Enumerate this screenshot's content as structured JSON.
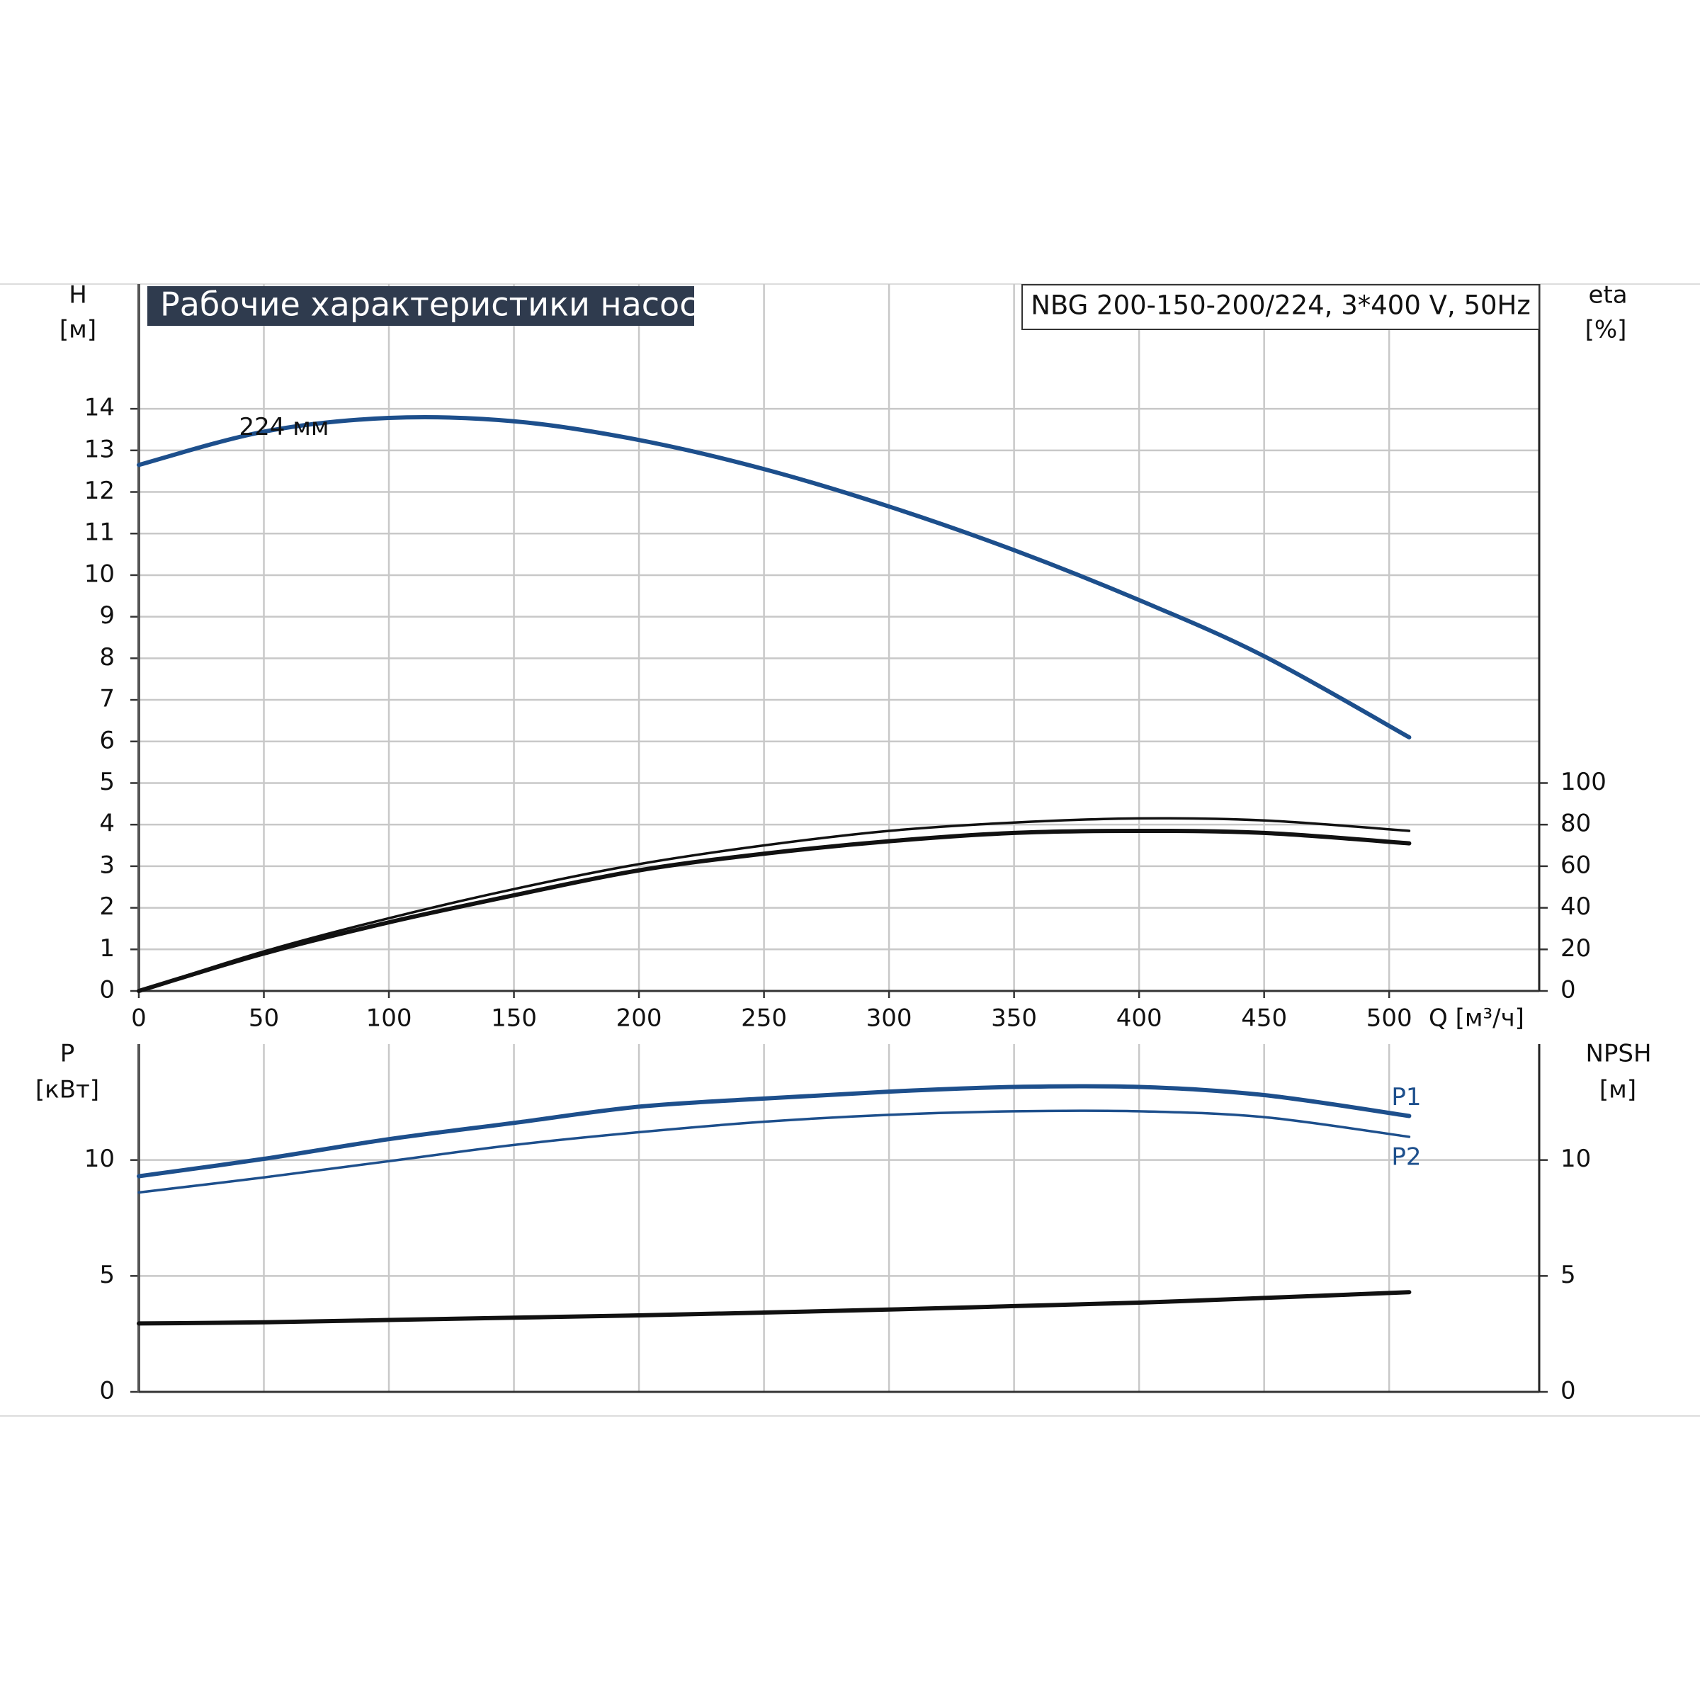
{
  "chart_data": [
    {
      "type": "line",
      "title": "Рабочие характеристики насоса",
      "subtitle": "NBG 200-150-200/224, 3*400 V, 50Hz",
      "ylabel": "H",
      "yunit": "[м]",
      "y2label": "eta",
      "y2unit": "[%]",
      "xlabel": "Q [м³/ч]",
      "x": [
        0,
        50,
        100,
        150,
        200,
        250,
        300,
        350,
        400,
        450,
        508
      ],
      "xlim": [
        0,
        560
      ],
      "xticks": [
        0,
        50,
        100,
        150,
        200,
        250,
        300,
        350,
        400,
        450,
        500
      ],
      "ylim": [
        0,
        17
      ],
      "yticks": [
        0,
        1,
        2,
        3,
        4,
        5,
        6,
        7,
        8,
        9,
        10,
        11,
        12,
        13,
        14
      ],
      "y2lim": [
        0,
        340
      ],
      "y2ticks": [
        0,
        20,
        40,
        60,
        80,
        100
      ],
      "grid": true,
      "series": [
        {
          "name": "224 мм",
          "color": "#1d4f8c",
          "values": [
            12.65,
            13.45,
            13.78,
            13.7,
            13.25,
            12.55,
            11.65,
            10.6,
            9.4,
            8.05,
            6.1
          ]
        },
        {
          "color": "#111111",
          "axis": "y2",
          "values": [
            0,
            19,
            35,
            49,
            61,
            70,
            77,
            81,
            83,
            82,
            77
          ]
        },
        {
          "color": "#111111",
          "axis": "y2",
          "values": [
            0,
            18,
            33,
            46,
            58,
            66,
            72,
            76,
            77,
            76,
            71
          ]
        }
      ]
    },
    {
      "type": "line",
      "ylabel": "P",
      "yunit": "[кВт]",
      "y2label": "NPSH",
      "y2unit": "[м]",
      "x": [
        0,
        50,
        100,
        150,
        200,
        250,
        300,
        350,
        400,
        450,
        508
      ],
      "xlim": [
        0,
        560
      ],
      "ylim": [
        0,
        15
      ],
      "yticks": [
        0,
        5,
        10
      ],
      "y2lim": [
        0,
        15
      ],
      "y2ticks": [
        0,
        5,
        10
      ],
      "grid": true,
      "series": [
        {
          "name": "P1",
          "color": "#1d4f8c",
          "values": [
            9.3,
            10.05,
            10.9,
            11.6,
            12.3,
            12.65,
            12.95,
            13.15,
            13.15,
            12.8,
            11.9
          ]
        },
        {
          "name": "P2",
          "color": "#1d4f8c",
          "values": [
            8.6,
            9.25,
            9.95,
            10.65,
            11.2,
            11.65,
            11.95,
            12.1,
            12.1,
            11.85,
            11.0
          ]
        },
        {
          "color": "#111111",
          "axis": "y2",
          "values": [
            2.95,
            3.0,
            3.1,
            3.2,
            3.3,
            3.42,
            3.55,
            3.7,
            3.85,
            4.05,
            4.3
          ]
        }
      ]
    }
  ]
}
